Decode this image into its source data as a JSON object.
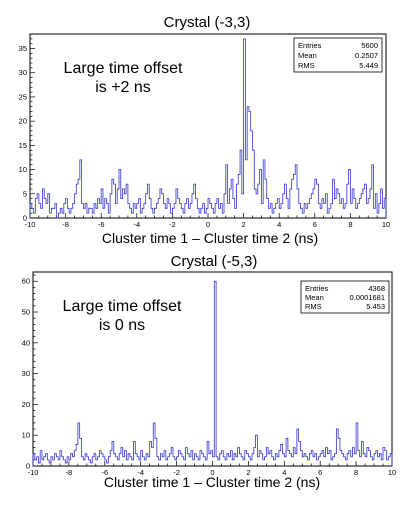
{
  "chart_data": [
    {
      "type": "histogram",
      "title": "Crystal (-3,3)",
      "xlabel": "Cluster time 1 – Cluster time 2 (ns)",
      "ylabel": "",
      "xlim": [
        -10,
        10
      ],
      "ylim": [
        0,
        38
      ],
      "x_ticks": [
        -10,
        -8,
        -6,
        -4,
        -2,
        0,
        2,
        4,
        6,
        8,
        10
      ],
      "y_ticks": [
        0,
        5,
        10,
        15,
        20,
        25,
        30,
        35
      ],
      "annotation": [
        "Large time offset",
        "is +2 ns"
      ],
      "stats": [
        {
          "label": "Entries",
          "value": "5600"
        },
        {
          "label": "Mean",
          "value": "0.2507"
        },
        {
          "label": "RMS",
          "value": "5.449"
        }
      ],
      "bin_width": 0.1,
      "values": [
        3,
        2,
        1,
        4,
        5,
        3,
        2,
        6,
        4,
        3,
        5,
        1,
        2,
        2,
        3,
        0,
        1,
        2,
        1,
        3,
        4,
        2,
        1,
        2,
        3,
        5,
        7,
        8,
        12,
        3,
        2,
        3,
        1,
        2,
        2,
        1,
        3,
        2,
        4,
        3,
        6,
        2,
        4,
        3,
        1,
        5,
        8,
        7,
        3,
        6,
        10,
        4,
        6,
        5,
        7,
        3,
        2,
        1,
        3,
        2,
        3,
        4,
        1,
        2,
        3,
        5,
        7,
        4,
        2,
        1,
        2,
        3,
        4,
        6,
        5,
        3,
        2,
        4,
        3,
        1,
        2,
        3,
        6,
        4,
        3,
        2,
        1,
        3,
        4,
        2,
        3,
        5,
        7,
        4,
        2,
        1,
        2,
        3,
        1,
        2,
        4,
        3,
        2,
        1,
        3,
        4,
        2,
        3,
        1,
        5,
        11,
        3,
        6,
        8,
        4,
        2,
        7,
        9,
        14,
        5,
        37,
        12,
        23,
        22,
        18,
        14,
        6,
        5,
        7,
        10,
        3,
        12,
        8,
        4,
        2,
        3,
        1,
        2,
        3,
        4,
        2,
        3,
        5,
        7,
        4,
        2,
        6,
        8,
        9,
        11,
        6,
        3,
        2,
        1,
        3,
        2,
        3,
        4,
        5,
        6,
        8,
        7,
        3,
        2,
        4,
        3,
        5,
        1,
        2,
        3,
        8,
        4,
        6,
        5,
        3,
        4,
        2,
        3,
        7,
        10,
        3,
        6,
        4,
        2,
        3,
        4,
        5,
        6,
        7,
        3,
        4,
        6,
        11,
        2,
        5,
        1,
        3,
        6,
        2,
        4
      ]
    },
    {
      "type": "histogram",
      "title": "Crystal (-5,3)",
      "xlabel": "Cluster time 1 – Cluster time 2 (ns)",
      "ylabel": "",
      "xlim": [
        -10,
        10
      ],
      "ylim": [
        0,
        63
      ],
      "x_ticks": [
        -10,
        -8,
        -6,
        -4,
        -2,
        0,
        2,
        4,
        6,
        8,
        10
      ],
      "y_ticks": [
        0,
        10,
        20,
        30,
        40,
        50,
        60
      ],
      "annotation": [
        "Large time offset",
        "is 0 ns"
      ],
      "stats": [
        {
          "label": "Entries",
          "value": "4368"
        },
        {
          "label": "Mean",
          "value": "0.0001681"
        },
        {
          "label": "RMS",
          "value": "5.453"
        }
      ],
      "bin_width": 0.1,
      "values": [
        4,
        2,
        3,
        1,
        5,
        2,
        3,
        4,
        2,
        1,
        3,
        2,
        4,
        3,
        2,
        5,
        3,
        2,
        1,
        3,
        2,
        4,
        3,
        5,
        7,
        14,
        9,
        3,
        2,
        4,
        3,
        2,
        1,
        3,
        4,
        2,
        3,
        5,
        4,
        3,
        2,
        1,
        3,
        5,
        8,
        4,
        3,
        2,
        4,
        6,
        3,
        5,
        2,
        4,
        3,
        2,
        8,
        4,
        3,
        2,
        5,
        3,
        2,
        4,
        3,
        8,
        6,
        14,
        9,
        3,
        2,
        4,
        3,
        5,
        2,
        3,
        4,
        6,
        3,
        2,
        3,
        5,
        4,
        3,
        2,
        6,
        4,
        3,
        5,
        2,
        4,
        3,
        2,
        5,
        4,
        3,
        2,
        8,
        4,
        5,
        3,
        60,
        3,
        2,
        4,
        5,
        3,
        2,
        4,
        3,
        5,
        2,
        4,
        3,
        6,
        4,
        3,
        2,
        5,
        4,
        3,
        2,
        4,
        6,
        10,
        3,
        5,
        4,
        2,
        3,
        6,
        4,
        5,
        3,
        2,
        4,
        3,
        5,
        7,
        4,
        3,
        9,
        5,
        4,
        3,
        6,
        4,
        12,
        8,
        5,
        3,
        4,
        3,
        2,
        4,
        5,
        3,
        4,
        2,
        3,
        4,
        5,
        3,
        6,
        4,
        5,
        2,
        3,
        4,
        12,
        9,
        5,
        4,
        3,
        2,
        4,
        5,
        3,
        6,
        4,
        14,
        5,
        3,
        8,
        4,
        3,
        6,
        5,
        3,
        2,
        4,
        5,
        3,
        4,
        2,
        6,
        5,
        2,
        3,
        4
      ]
    }
  ]
}
